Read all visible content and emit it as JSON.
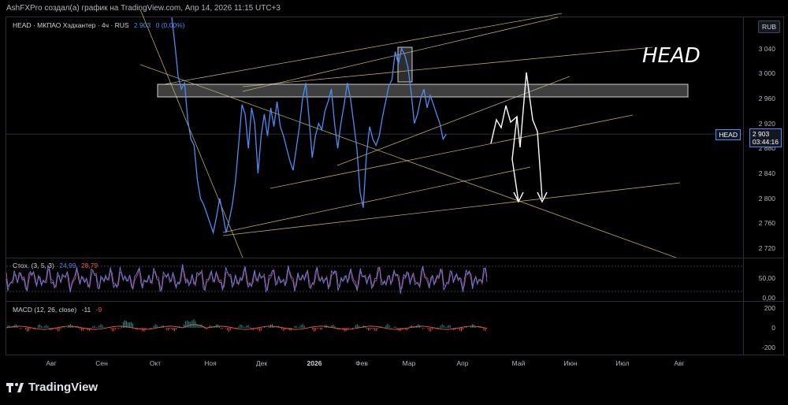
{
  "caption": "AshFXPro создал(а) график на TradingView.com, Апр 14, 2026 11:15 UTC+3",
  "legend": {
    "symbol": "HEAD · МКПАО Хэдхантер · 4ч · RUS",
    "price": "2 903",
    "change": "0 (0,00%)"
  },
  "currency": "RUB",
  "annotation_text": "HEAD",
  "price_label": {
    "name": "HEAD",
    "value": "2 903",
    "timer": "03:44:16"
  },
  "stoch_legend": {
    "name": "Стох. (3, 5, 3)",
    "k": "24,99",
    "d": "28,79"
  },
  "macd_legend": {
    "name": "MACD (12, 26, close)",
    "v1": "-11",
    "v2": "-9"
  },
  "logo": "TradingView",
  "colors": {
    "price_line": "#4c8cf5",
    "trendline": "#d9c96a",
    "stoch_k": "#5b7fe0",
    "stoch_d": "#c2457c",
    "macd_pos": "#26a69a",
    "macd_neg": "#ef5350"
  },
  "chart_data": {
    "type": "line",
    "price_axis": {
      "ticks": [
        3040,
        3000,
        2960,
        2920,
        2880,
        2840,
        2800,
        2760,
        2720
      ],
      "range": [
        2705,
        3090
      ]
    },
    "stoch_axis": {
      "ticks": [
        "50,00",
        "0,00"
      ]
    },
    "macd_axis": {
      "ticks": [
        "200",
        "0",
        "-200"
      ]
    },
    "time_axis": [
      {
        "label": "Авг",
        "bold": false
      },
      {
        "label": "Сен",
        "bold": false
      },
      {
        "label": "Окт",
        "bold": false
      },
      {
        "label": "Ноя",
        "bold": false
      },
      {
        "label": "Дек",
        "bold": false
      },
      {
        "label": "2026",
        "bold": true
      },
      {
        "label": "Фев",
        "bold": false
      },
      {
        "label": "Мар",
        "bold": false
      },
      {
        "label": "Апр",
        "bold": false
      },
      {
        "label": "Май",
        "bold": false
      },
      {
        "label": "Июн",
        "bold": false
      },
      {
        "label": "Июл",
        "bold": false
      },
      {
        "label": "Авг",
        "bold": false
      }
    ],
    "last_price": 2903,
    "price_series": [
      [
        0.0,
        3090
      ],
      [
        0.01,
        3045
      ],
      [
        0.02,
        2995
      ],
      [
        0.03,
        2975
      ],
      [
        0.04,
        2985
      ],
      [
        0.05,
        2925
      ],
      [
        0.06,
        2895
      ],
      [
        0.07,
        2885
      ],
      [
        0.08,
        2830
      ],
      [
        0.09,
        2800
      ],
      [
        0.1,
        2790
      ],
      [
        0.11,
        2775
      ],
      [
        0.12,
        2760
      ],
      [
        0.13,
        2745
      ],
      [
        0.14,
        2770
      ],
      [
        0.15,
        2800
      ],
      [
        0.16,
        2775
      ],
      [
        0.17,
        2745
      ],
      [
        0.18,
        2765
      ],
      [
        0.19,
        2790
      ],
      [
        0.2,
        2830
      ],
      [
        0.21,
        2890
      ],
      [
        0.22,
        2950
      ],
      [
        0.23,
        2935
      ],
      [
        0.24,
        2880
      ],
      [
        0.25,
        2945
      ],
      [
        0.26,
        2920
      ],
      [
        0.27,
        2840
      ],
      [
        0.28,
        2900
      ],
      [
        0.29,
        2935
      ],
      [
        0.3,
        2900
      ],
      [
        0.31,
        2945
      ],
      [
        0.32,
        2915
      ],
      [
        0.33,
        2955
      ],
      [
        0.34,
        2915
      ],
      [
        0.35,
        2900
      ],
      [
        0.36,
        2880
      ],
      [
        0.37,
        2860
      ],
      [
        0.38,
        2845
      ],
      [
        0.39,
        2880
      ],
      [
        0.4,
        2915
      ],
      [
        0.41,
        2960
      ],
      [
        0.42,
        2985
      ],
      [
        0.43,
        2930
      ],
      [
        0.44,
        2865
      ],
      [
        0.45,
        2900
      ],
      [
        0.46,
        2920
      ],
      [
        0.47,
        2910
      ],
      [
        0.48,
        2940
      ],
      [
        0.49,
        2955
      ],
      [
        0.5,
        2975
      ],
      [
        0.51,
        2920
      ],
      [
        0.52,
        2880
      ],
      [
        0.53,
        2920
      ],
      [
        0.54,
        2950
      ],
      [
        0.55,
        2985
      ],
      [
        0.56,
        2960
      ],
      [
        0.57,
        2920
      ],
      [
        0.58,
        2880
      ],
      [
        0.59,
        2810
      ],
      [
        0.6,
        2785
      ],
      [
        0.61,
        2870
      ],
      [
        0.62,
        2915
      ],
      [
        0.63,
        2895
      ],
      [
        0.64,
        2885
      ],
      [
        0.65,
        2900
      ],
      [
        0.66,
        2930
      ],
      [
        0.67,
        2955
      ],
      [
        0.68,
        2980
      ],
      [
        0.69,
        2990
      ],
      [
        0.7,
        3035
      ],
      [
        0.71,
        3015
      ],
      [
        0.72,
        3040
      ],
      [
        0.73,
        3030
      ],
      [
        0.74,
        3010
      ],
      [
        0.75,
        2970
      ],
      [
        0.76,
        2920
      ],
      [
        0.77,
        2935
      ],
      [
        0.78,
        2960
      ],
      [
        0.79,
        2975
      ],
      [
        0.8,
        2945
      ],
      [
        0.81,
        2965
      ],
      [
        0.82,
        2950
      ],
      [
        0.83,
        2935
      ],
      [
        0.84,
        2920
      ],
      [
        0.85,
        2895
      ],
      [
        0.86,
        2903
      ]
    ]
  }
}
